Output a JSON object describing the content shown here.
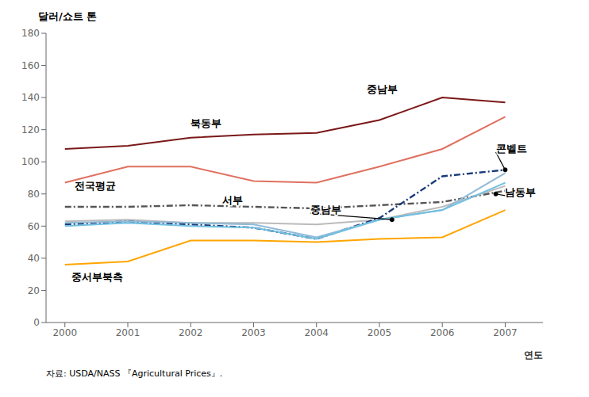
{
  "chart_data": {
    "type": "line",
    "y_label": "달러/쇼트 톤",
    "x_label": "연도",
    "note": "자료: USDA/NASS 『Agricultural Prices』.",
    "x": [
      2000,
      2001,
      2002,
      2003,
      2004,
      2005,
      2006,
      2007
    ],
    "xlim": [
      1999.7,
      2007.6
    ],
    "xticks": [
      2000,
      2001,
      2002,
      2003,
      2004,
      2005,
      2006,
      2007
    ],
    "ylim": [
      0,
      180
    ],
    "yticks": [
      0,
      20,
      40,
      60,
      80,
      100,
      120,
      140,
      160,
      180
    ],
    "grid": false,
    "series": [
      {
        "name": "중남부",
        "color": "#7B1818",
        "line_style": "solid",
        "values": [
          108,
          110,
          115,
          117,
          118,
          126,
          140,
          137
        ]
      },
      {
        "name": "북동부",
        "color": "#E07060",
        "line_style": "solid",
        "values": [
          87,
          97,
          97,
          88,
          87,
          97,
          108,
          128
        ]
      },
      {
        "name": "전국평균",
        "color": "#555555",
        "line_style": "dashdot",
        "values": [
          72,
          72,
          73,
          72,
          71,
          73,
          75,
          82
        ]
      },
      {
        "name": "서부",
        "color": "#BBBBBB",
        "line_style": "solid",
        "values": [
          63,
          64,
          62,
          62,
          61,
          64,
          72,
          85
        ]
      },
      {
        "name": "콘벨트",
        "color": "#1A3A7A",
        "line_style": "dashdot",
        "values": [
          61,
          63,
          61,
          59,
          52,
          65,
          91,
          95
        ]
      },
      {
        "name": "남동부",
        "color": "#90BAD8",
        "line_style": "solid",
        "values": [
          62,
          63,
          62,
          61,
          53,
          64,
          70,
          93
        ]
      },
      {
        "name": "중남부",
        "color": "#70C0E0",
        "line_style": "solid",
        "values": [
          60,
          62,
          60,
          59,
          52,
          64,
          70,
          87
        ]
      },
      {
        "name": "중서부북측",
        "color": "#FFA500",
        "line_style": "solid",
        "values": [
          36,
          38,
          51,
          51,
          50,
          52,
          53,
          70
        ]
      }
    ],
    "annotations": [
      {
        "text": "중남부",
        "x": 2004.8,
        "y": 143
      },
      {
        "text": "북동부",
        "x": 2002.0,
        "y": 122
      },
      {
        "text": "전국평균",
        "x": 2000.15,
        "y": 83
      },
      {
        "text": "서부",
        "x": 2002.5,
        "y": 74
      },
      {
        "text": "콘벨트",
        "x": 2006.85,
        "y": 106,
        "arrow": {
          "x": 2007,
          "y": 95
        }
      },
      {
        "text": "남동부",
        "x": 2007.0,
        "y": 79,
        "arrow": {
          "x": 2006.85,
          "y": 80
        }
      },
      {
        "text": "중남부",
        "x": 2003.9,
        "y": 68,
        "arrow": {
          "x": 2005.2,
          "y": 64
        }
      },
      {
        "text": "중서부북측",
        "x": 2000.1,
        "y": 26
      }
    ]
  }
}
